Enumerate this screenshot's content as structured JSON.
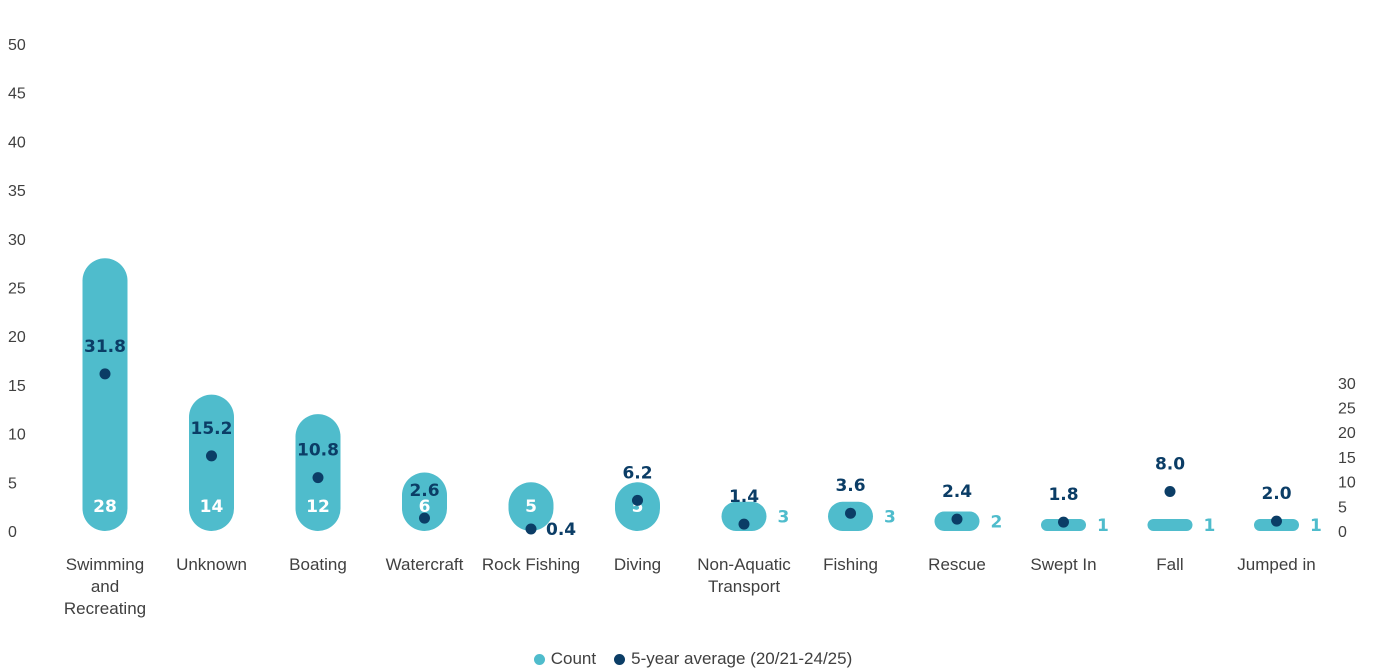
{
  "chart_data": {
    "type": "bar",
    "categories": [
      "Swimming and Recreating",
      "Unknown",
      "Boating",
      "Watercraft",
      "Rock Fishing",
      "Diving",
      "Non-Aquatic Transport",
      "Fishing",
      "Rescue",
      "Swept In",
      "Fall",
      "Jumped in"
    ],
    "category_lines": [
      [
        "Swimming",
        "and",
        "Recreating"
      ],
      [
        "Unknown"
      ],
      [
        "Boating"
      ],
      [
        "Watercraft"
      ],
      [
        "Rock Fishing"
      ],
      [
        "Diving"
      ],
      [
        "Non-Aquatic",
        "Transport"
      ],
      [
        "Fishing"
      ],
      [
        "Rescue"
      ],
      [
        "Swept In"
      ],
      [
        "Fall"
      ],
      [
        "Jumped in"
      ]
    ],
    "series": [
      {
        "name": "Count",
        "type": "bar",
        "axis": "left",
        "color": "#4fbccc",
        "values": [
          28,
          14,
          12,
          6,
          5,
          5,
          3,
          3,
          2,
          1,
          1,
          1
        ],
        "labels": [
          "28",
          "14",
          "12",
          "6",
          "5",
          "5",
          "3",
          "3",
          "2",
          "1",
          "1",
          "1"
        ]
      },
      {
        "name": "5-year average  (20/21-24/25)",
        "type": "scatter",
        "axis": "right",
        "color": "#0b3d66",
        "values": [
          31.8,
          15.2,
          10.8,
          2.6,
          0.4,
          6.2,
          1.4,
          3.6,
          2.4,
          1.8,
          8.0,
          2.0
        ],
        "labels": [
          "31.8",
          "15.2",
          "10.8",
          "2.6",
          "0.4",
          "6.2",
          "1.4",
          "3.6",
          "2.4",
          "1.8",
          "8.0",
          "2.0"
        ]
      }
    ],
    "y_left": {
      "min": 0,
      "max": 50,
      "ticks": [
        "0",
        "5",
        "10",
        "15",
        "20",
        "25",
        "30",
        "35",
        "40",
        "45",
        "50"
      ]
    },
    "y_right": {
      "min": 0,
      "max": 30,
      "ticks": [
        "0",
        "5",
        "10",
        "15",
        "20",
        "25",
        "30"
      ]
    },
    "grid": false,
    "legend_position": "bottom"
  },
  "legend": {
    "count_label": "Count",
    "avg_label": "5-year average  (20/21-24/25)",
    "count_color": "#4fbccc",
    "avg_color": "#0b3d66"
  }
}
